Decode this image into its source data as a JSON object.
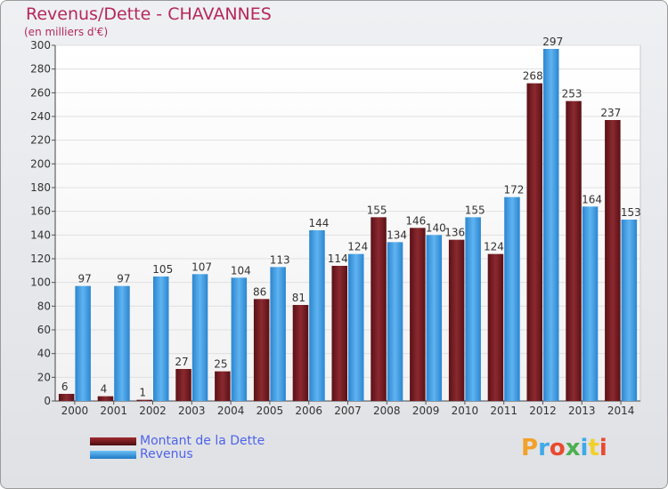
{
  "chart_data": {
    "type": "bar",
    "title": "Revenus/Dette - CHAVANNES",
    "subtitle": "(en milliers d'€)",
    "categories": [
      "2000",
      "2001",
      "2002",
      "2003",
      "2004",
      "2005",
      "2006",
      "2007",
      "2008",
      "2009",
      "2010",
      "2011",
      "2012",
      "2013",
      "2014"
    ],
    "series": [
      {
        "name": "Montant de la Dette",
        "color": "#7a1c22",
        "values": [
          6,
          4,
          1,
          27,
          25,
          86,
          81,
          114,
          155,
          146,
          136,
          124,
          268,
          253,
          237
        ]
      },
      {
        "name": "Revenus",
        "color": "#3d9be3",
        "values": [
          97,
          97,
          105,
          107,
          104,
          113,
          144,
          124,
          134,
          140,
          155,
          172,
          297,
          164,
          153
        ]
      }
    ],
    "ylim": [
      0,
      300
    ],
    "yticks": [
      0,
      20,
      40,
      60,
      80,
      100,
      120,
      140,
      160,
      180,
      200,
      220,
      240,
      260,
      280,
      300
    ],
    "grid": true,
    "legend": "bottom-left"
  },
  "logo": {
    "text": "Proxiti",
    "colors": [
      "#f2a12a",
      "#3fa9e8",
      "#e84a2f",
      "#4caf50",
      "#3fa9e8",
      "#f2d02a",
      "#e84a2f"
    ]
  }
}
